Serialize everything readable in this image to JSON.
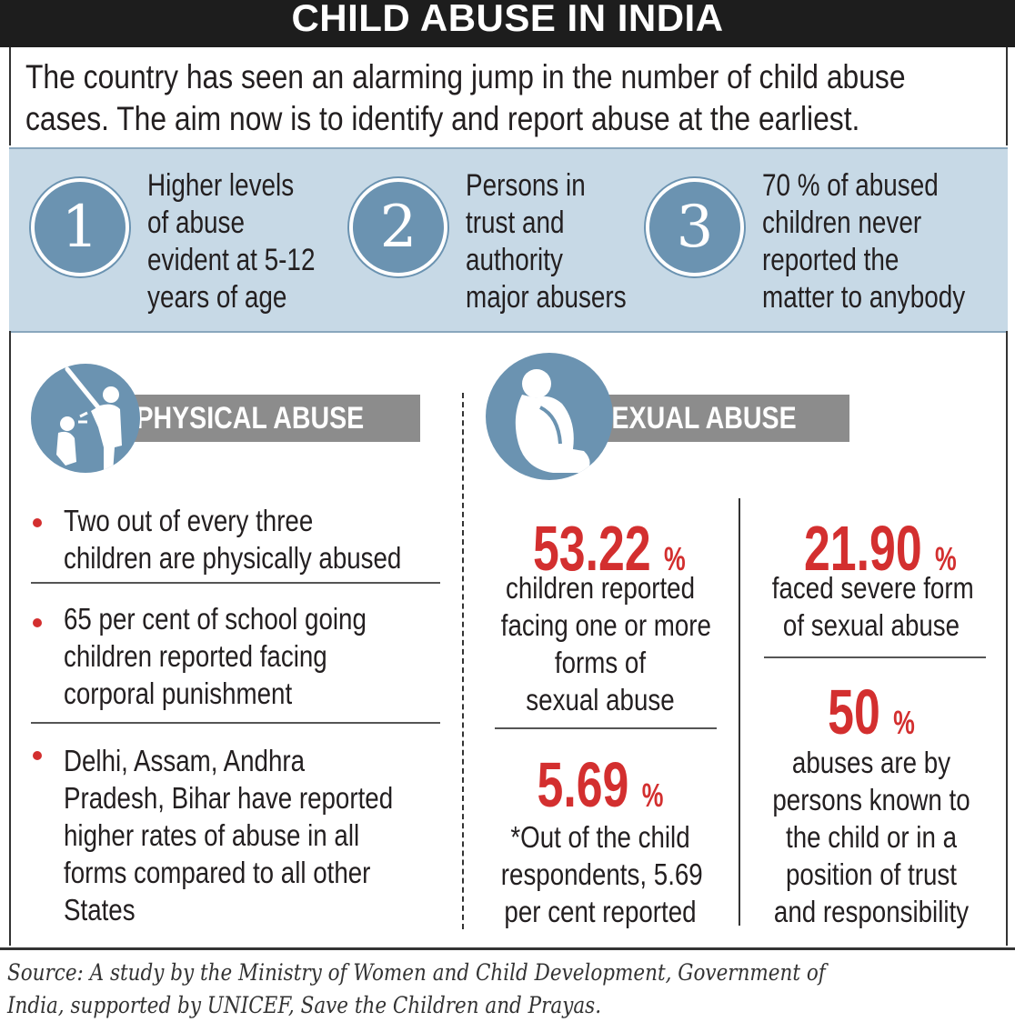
{
  "title": "CHILD ABUSE IN INDIA",
  "intro": {
    "line1": "The country has seen an alarming jump in the number of child abuse",
    "line2": "cases. The aim now is to identify and report abuse at the earliest."
  },
  "key_facts": [
    {
      "number": "1",
      "lines": [
        "Higher levels",
        "of abuse",
        "evident at 5-12",
        "years of age"
      ]
    },
    {
      "number": "2",
      "lines": [
        "Persons in",
        "trust and",
        "authority",
        "major abusers"
      ]
    },
    {
      "number": "3",
      "lines": [
        "70 % of abused",
        "children never",
        "reported the",
        "matter to anybody"
      ]
    }
  ],
  "physical_abuse": {
    "label": "PHYSICAL ABUSE",
    "bullets": [
      {
        "lines": [
          "Two out of every three",
          "children are physically abused"
        ]
      },
      {
        "lines": [
          "65 per cent of school going",
          "children reported facing",
          "corporal punishment"
        ]
      },
      {
        "lines": [
          "Delhi, Assam, Andhra",
          "Pradesh, Bihar have reported",
          "higher rates of abuse in all",
          "forms compared to all other",
          "States"
        ]
      }
    ]
  },
  "sexual_abuse": {
    "label": "SEXUAL ABUSE",
    "stats": [
      {
        "value": "53.22",
        "unit": "%",
        "lines": [
          "children reported",
          "facing one or more",
          "forms of",
          "sexual abuse"
        ]
      },
      {
        "value": "5.69",
        "unit": "%",
        "lines": [
          "*Out of the child",
          "respondents, 5.69",
          "per cent reported"
        ]
      },
      {
        "value": "21.90",
        "unit": "%",
        "lines": [
          "faced severe form",
          "of sexual abuse"
        ]
      },
      {
        "value": "50",
        "unit": "%",
        "lines": [
          "abuses are by",
          "persons known to",
          "the child or in a",
          "position of trust",
          "and responsibility"
        ]
      }
    ]
  },
  "source": {
    "line1": "Source: A study by the Ministry of Women and Child Development, Government of",
    "line2": "India, supported by UNICEF, Save the Children and Prayas."
  },
  "colors": {
    "title_bg": "#1d1d1d",
    "band_bg": "#c7d9e6",
    "circle_blue": "#6b93b1",
    "stat_red": "#d32f2f",
    "badge_grey": "#8c8c8c"
  }
}
